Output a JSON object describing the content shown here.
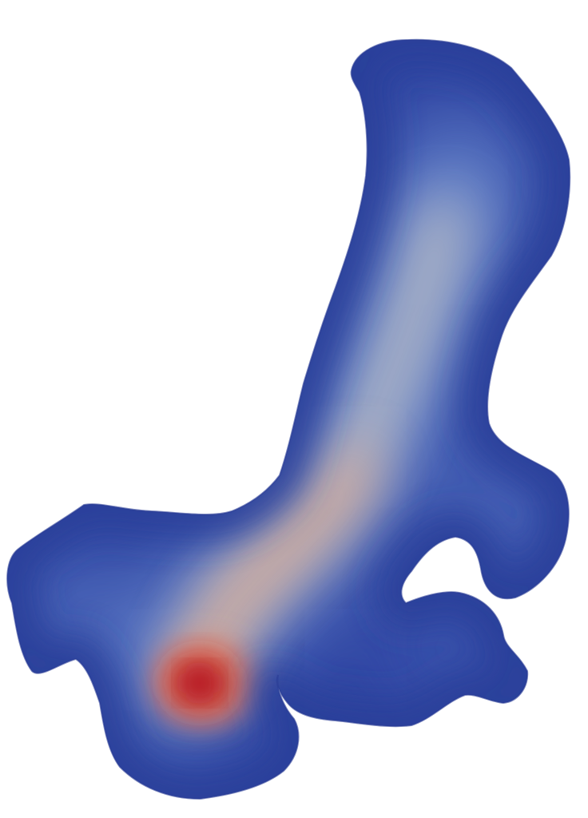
{
  "scene": {
    "background": "#ffffff",
    "object": "surface-mesh",
    "colormap": {
      "name": "cool-to-warm",
      "low": "#3b4cc0",
      "low_mid": "#6f91d8",
      "mid": "#c4c4c4",
      "high_mid": "#e8a488",
      "high": "#b40426"
    }
  }
}
